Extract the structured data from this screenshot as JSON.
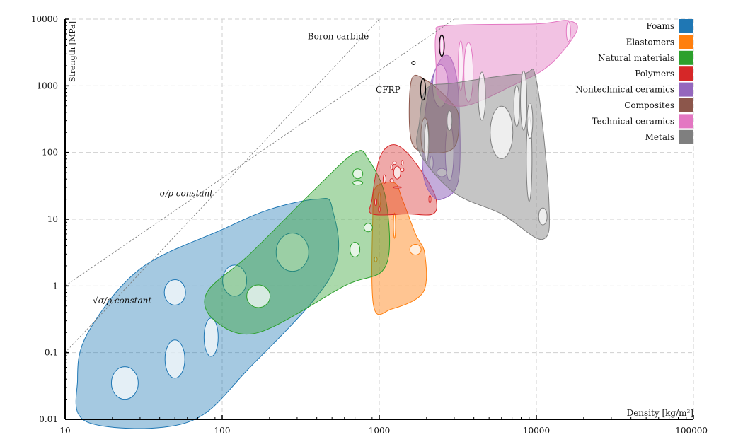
{
  "chart_data": {
    "type": "scatter",
    "title": "",
    "xlabel": "Density [kg/m³]",
    "ylabel": "Strength [MPa]",
    "x_scale": "log",
    "y_scale": "log",
    "xlim": [
      10,
      100000
    ],
    "ylim": [
      0.01,
      10000
    ],
    "x_ticks": [
      {
        "v": 10,
        "label": "10"
      },
      {
        "v": 100,
        "label": "100"
      },
      {
        "v": 1000,
        "label": "1000"
      },
      {
        "v": 10000,
        "label": "10000"
      },
      {
        "v": 100000,
        "label": "100000"
      }
    ],
    "y_ticks": [
      {
        "v": 0.01,
        "label": "0.01"
      },
      {
        "v": 0.1,
        "label": "0.1"
      },
      {
        "v": 1,
        "label": "1"
      },
      {
        "v": 10,
        "label": "10"
      },
      {
        "v": 100,
        "label": "100"
      },
      {
        "v": 1000,
        "label": "1000"
      },
      {
        "v": 10000,
        "label": "10000"
      }
    ],
    "grid": true,
    "legend_position": "top-right",
    "guide_lines": [
      {
        "label": "σ/ρ constant",
        "x": [
          10,
          3000
        ],
        "y": [
          1,
          10000
        ],
        "label_at": [
          40,
          22
        ]
      },
      {
        "label": "√σ/ρ constant",
        "x": [
          10,
          1000
        ],
        "y": [
          0.1,
          10000
        ],
        "label_at": [
          15,
          0.55
        ]
      }
    ],
    "series": [
      {
        "name": "Foams",
        "color": "#1f77b4",
        "fill_opacity": 0.4,
        "envelope": [
          [
            14,
            0.009
          ],
          [
            12,
            0.04
          ],
          [
            14,
            0.2
          ],
          [
            30,
            1.8
          ],
          [
            100,
            7
          ],
          [
            200,
            14
          ],
          [
            400,
            20
          ],
          [
            500,
            15
          ],
          [
            500,
            1.5
          ],
          [
            150,
            0.06
          ],
          [
            60,
            0.009
          ]
        ],
        "bubbles": [
          {
            "x": 24,
            "y": 0.035,
            "rx": 1.9,
            "ry": 2.3
          },
          {
            "x": 50,
            "y": 0.08,
            "rx": 1.4,
            "ry": 2.7
          },
          {
            "x": 50,
            "y": 0.8,
            "rx": 1.5,
            "ry": 1.8
          },
          {
            "x": 85,
            "y": 0.17,
            "rx": 1.0,
            "ry": 2.7
          },
          {
            "x": 120,
            "y": 1.2,
            "rx": 1.7,
            "ry": 2.2
          },
          {
            "x": 280,
            "y": 3.2,
            "rx": 2.3,
            "ry": 2.7
          }
        ]
      },
      {
        "name": "Elastomers",
        "color": "#ff7f0e",
        "fill_opacity": 0.45,
        "envelope": [
          [
            920,
            0.5
          ],
          [
            910,
            12
          ],
          [
            950,
            30
          ],
          [
            1250,
            35
          ],
          [
            1400,
            20
          ],
          [
            1700,
            6
          ],
          [
            1950,
            3
          ],
          [
            1900,
            0.8
          ],
          [
            1200,
            0.45
          ]
        ],
        "bubbles": [
          {
            "x": 1000,
            "y": 20,
            "rx": 0.2,
            "ry": 1.0
          },
          {
            "x": 950,
            "y": 2.5,
            "rx": 0.2,
            "ry": 0.35
          },
          {
            "x": 1250,
            "y": 8,
            "rx": 0.15,
            "ry": 1.8
          },
          {
            "x": 1700,
            "y": 3.5,
            "rx": 0.8,
            "ry": 0.75
          }
        ]
      },
      {
        "name": "Natural materials",
        "color": "#2ca02c",
        "fill_opacity": 0.4,
        "envelope": [
          [
            80,
            0.8
          ],
          [
            150,
            3
          ],
          [
            400,
            30
          ],
          [
            700,
            100
          ],
          [
            850,
            80
          ],
          [
            1100,
            20
          ],
          [
            1100,
            2
          ],
          [
            600,
            1
          ],
          [
            170,
            0.2
          ],
          [
            90,
            0.3
          ]
        ],
        "bubbles": [
          {
            "x": 170,
            "y": 0.7,
            "rx": 1.65,
            "ry": 1.6
          },
          {
            "x": 700,
            "y": 3.5,
            "rx": 0.7,
            "ry": 1.05
          },
          {
            "x": 850,
            "y": 7.5,
            "rx": 0.6,
            "ry": 0.6
          },
          {
            "x": 730,
            "y": 48,
            "rx": 0.7,
            "ry": 0.7
          },
          {
            "x": 730,
            "y": 35,
            "rx": 0.7,
            "ry": 0.3
          }
        ]
      },
      {
        "name": "Polymers",
        "color": "#d62728",
        "fill_opacity": 0.4,
        "envelope": [
          [
            900,
            20
          ],
          [
            1000,
            80
          ],
          [
            1200,
            130
          ],
          [
            1500,
            100
          ],
          [
            2000,
            40
          ],
          [
            2300,
            20
          ],
          [
            2200,
            12
          ],
          [
            1500,
            12
          ],
          [
            900,
            12
          ]
        ],
        "bubbles": [
          {
            "x": 950,
            "y": 18,
            "rx": 0.15,
            "ry": 0.5
          },
          {
            "x": 1000,
            "y": 14,
            "rx": 0.12,
            "ry": 0.4
          },
          {
            "x": 1080,
            "y": 40,
            "rx": 0.2,
            "ry": 0.6
          },
          {
            "x": 1200,
            "y": 60,
            "rx": 0.15,
            "ry": 0.35
          },
          {
            "x": 1300,
            "y": 50,
            "rx": 0.5,
            "ry": 0.9
          },
          {
            "x": 1250,
            "y": 70,
            "rx": 0.25,
            "ry": 0.25
          },
          {
            "x": 1400,
            "y": 55,
            "rx": 0.25,
            "ry": 0.25
          },
          {
            "x": 1400,
            "y": 70,
            "rx": 0.15,
            "ry": 0.35
          },
          {
            "x": 1200,
            "y": 38,
            "rx": 0.25,
            "ry": 0.25
          },
          {
            "x": 1300,
            "y": 30,
            "rx": 0.6,
            "ry": 0.1
          },
          {
            "x": 2100,
            "y": 20,
            "rx": 0.15,
            "ry": 0.5
          }
        ]
      },
      {
        "name": "Nontechnical ceramics",
        "color": "#9467bd",
        "fill_opacity": 0.55,
        "envelope": [
          [
            1900,
            200
          ],
          [
            2100,
            1000
          ],
          [
            2500,
            2600
          ],
          [
            2900,
            2400
          ],
          [
            3200,
            700
          ],
          [
            3200,
            40
          ],
          [
            2500,
            20
          ],
          [
            2100,
            25
          ],
          [
            1900,
            50
          ]
        ],
        "bubbles": [
          {
            "x": 2150,
            "y": 70,
            "rx": 0.25,
            "ry": 0.95
          },
          {
            "x": 2450,
            "y": 1000,
            "rx": 1.1,
            "ry": 3.0
          },
          {
            "x": 2500,
            "y": 50,
            "rx": 0.7,
            "ry": 0.6
          },
          {
            "x": 2800,
            "y": 100,
            "rx": 0.6,
            "ry": 4.0
          }
        ]
      },
      {
        "name": "Composites",
        "color": "#8c564b",
        "fill_opacity": 0.45,
        "envelope": [
          [
            1600,
            150
          ],
          [
            1600,
            1200
          ],
          [
            2000,
            1200
          ],
          [
            2800,
            600
          ],
          [
            3200,
            350
          ],
          [
            3000,
            120
          ],
          [
            2100,
            100
          ]
        ],
        "bubbles": [
          {
            "x": 1950,
            "y": 180,
            "rx": 0.55,
            "ry": 2.5
          }
        ]
      },
      {
        "name": "Technical ceramics",
        "color": "#e377c2",
        "fill_opacity": 0.45,
        "envelope": [
          [
            2300,
            6000
          ],
          [
            2700,
            8000
          ],
          [
            10000,
            8500
          ],
          [
            16000,
            9500
          ],
          [
            18000,
            6500
          ],
          [
            12000,
            2000
          ],
          [
            7000,
            1000
          ],
          [
            3500,
            500
          ],
          [
            2400,
            700
          ],
          [
            2300,
            2000
          ]
        ],
        "bubbles": [
          {
            "x": 2500,
            "y": 4000,
            "rx": 0.25,
            "ry": 1.6
          },
          {
            "x": 3300,
            "y": 2000,
            "rx": 0.35,
            "ry": 3.5
          },
          {
            "x": 3700,
            "y": 1600,
            "rx": 0.65,
            "ry": 4.2
          },
          {
            "x": 16000,
            "y": 6500,
            "rx": 0.3,
            "ry": 1.4
          }
        ]
      },
      {
        "name": "Metals",
        "color": "#7f7f7f",
        "fill_opacity": 0.45,
        "envelope": [
          [
            1800,
            280
          ],
          [
            2000,
            900
          ],
          [
            3000,
            1100
          ],
          [
            8000,
            1500
          ],
          [
            10000,
            1200
          ],
          [
            12000,
            20
          ],
          [
            11000,
            5
          ],
          [
            6000,
            12
          ],
          [
            3000,
            25
          ],
          [
            1800,
            100
          ]
        ],
        "bubbles": [
          {
            "x": 2000,
            "y": 140,
            "rx": 0.3,
            "ry": 2.7
          },
          {
            "x": 2800,
            "y": 300,
            "rx": 0.35,
            "ry": 1.4
          },
          {
            "x": 4500,
            "y": 700,
            "rx": 0.5,
            "ry": 3.4
          },
          {
            "x": 6000,
            "y": 200,
            "rx": 1.6,
            "ry": 3.7
          },
          {
            "x": 7500,
            "y": 500,
            "rx": 0.4,
            "ry": 2.9
          },
          {
            "x": 8300,
            "y": 600,
            "rx": 0.45,
            "ry": 4.2
          },
          {
            "x": 9000,
            "y": 80,
            "rx": 0.4,
            "ry": 6.0
          },
          {
            "x": 9100,
            "y": 300,
            "rx": 0.4,
            "ry": 2.5
          },
          {
            "x": 11000,
            "y": 11,
            "rx": 0.6,
            "ry": 1.2
          }
        ]
      }
    ],
    "annotations": [
      {
        "text": "Boron carbide",
        "x": 2500,
        "y": 4000,
        "color": "#000000",
        "label_at": [
          350,
          5000
        ]
      },
      {
        "text": "CFRP",
        "x": 1900,
        "y": 880,
        "color": "#000000",
        "label_at": [
          950,
          790
        ]
      }
    ],
    "reference_point": {
      "x": 1650,
      "y": 2200
    }
  }
}
